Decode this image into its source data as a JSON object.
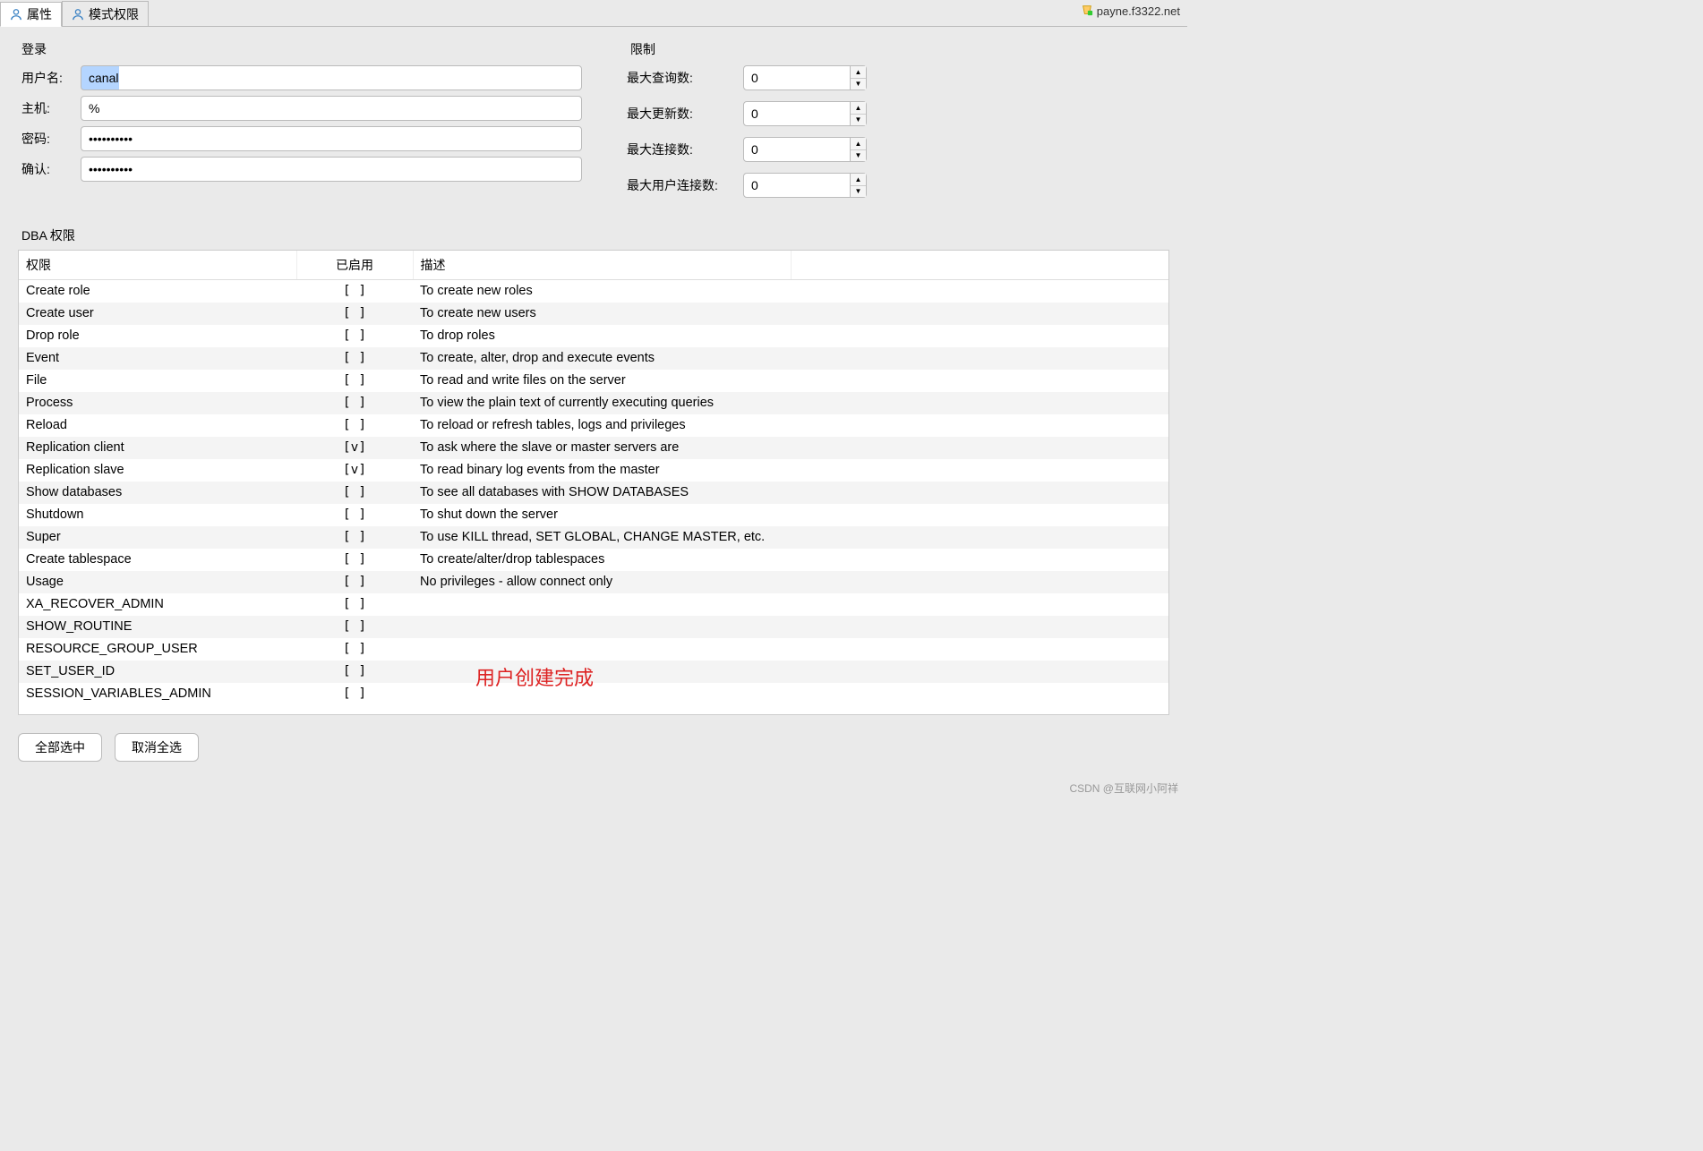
{
  "tabs": {
    "properties": "属性",
    "schema_priv": "模式权限"
  },
  "server": "payne.f3322.net",
  "login": {
    "title": "登录",
    "username_label": "用户名:",
    "username": "canal",
    "host_label": "主机:",
    "host": "%",
    "password_label": "密码:",
    "password": "••••••••••",
    "confirm_label": "确认:",
    "confirm": "••••••••••"
  },
  "limits": {
    "title": "限制",
    "max_queries_label": "最大查询数:",
    "max_queries": "0",
    "max_updates_label": "最大更新数:",
    "max_updates": "0",
    "max_conn_label": "最大连接数:",
    "max_conn": "0",
    "max_user_conn_label": "最大用户连接数:",
    "max_user_conn": "0"
  },
  "dba": {
    "title": "DBA 权限",
    "col_priv": "权限",
    "col_enabled": "已启用",
    "col_desc": "描述",
    "rows": [
      {
        "p": "Create role",
        "e": "[  ]",
        "d": "To create new roles"
      },
      {
        "p": "Create user",
        "e": "[  ]",
        "d": "To create new users"
      },
      {
        "p": "Drop role",
        "e": "[  ]",
        "d": "To drop roles"
      },
      {
        "p": "Event",
        "e": "[  ]",
        "d": "To create, alter, drop and execute events"
      },
      {
        "p": "File",
        "e": "[  ]",
        "d": "To read and write files on the server"
      },
      {
        "p": "Process",
        "e": "[  ]",
        "d": "To view the plain text of currently executing queries"
      },
      {
        "p": "Reload",
        "e": "[  ]",
        "d": "To reload or refresh tables, logs and privileges"
      },
      {
        "p": "Replication client",
        "e": "[v]",
        "d": "To ask where the slave or master servers are"
      },
      {
        "p": "Replication slave",
        "e": "[v]",
        "d": "To read binary log events from the master"
      },
      {
        "p": "Show databases",
        "e": "[  ]",
        "d": "To see all databases with SHOW DATABASES"
      },
      {
        "p": "Shutdown",
        "e": "[  ]",
        "d": "To shut down the server"
      },
      {
        "p": "Super",
        "e": "[  ]",
        "d": "To use KILL thread, SET GLOBAL, CHANGE MASTER, etc."
      },
      {
        "p": "Create tablespace",
        "e": "[  ]",
        "d": "To create/alter/drop tablespaces"
      },
      {
        "p": "Usage",
        "e": "[  ]",
        "d": "No privileges - allow connect only"
      },
      {
        "p": "XA_RECOVER_ADMIN",
        "e": "[  ]",
        "d": ""
      },
      {
        "p": "SHOW_ROUTINE",
        "e": "[  ]",
        "d": ""
      },
      {
        "p": "RESOURCE_GROUP_USER",
        "e": "[  ]",
        "d": ""
      },
      {
        "p": "SET_USER_ID",
        "e": "[  ]",
        "d": ""
      },
      {
        "p": "SESSION_VARIABLES_ADMIN",
        "e": "[  ]",
        "d": ""
      }
    ]
  },
  "annotation": "用户创建完成",
  "buttons": {
    "select_all": "全部选中",
    "deselect_all": "取消全选"
  },
  "watermark": "CSDN @互联网小阿祥"
}
